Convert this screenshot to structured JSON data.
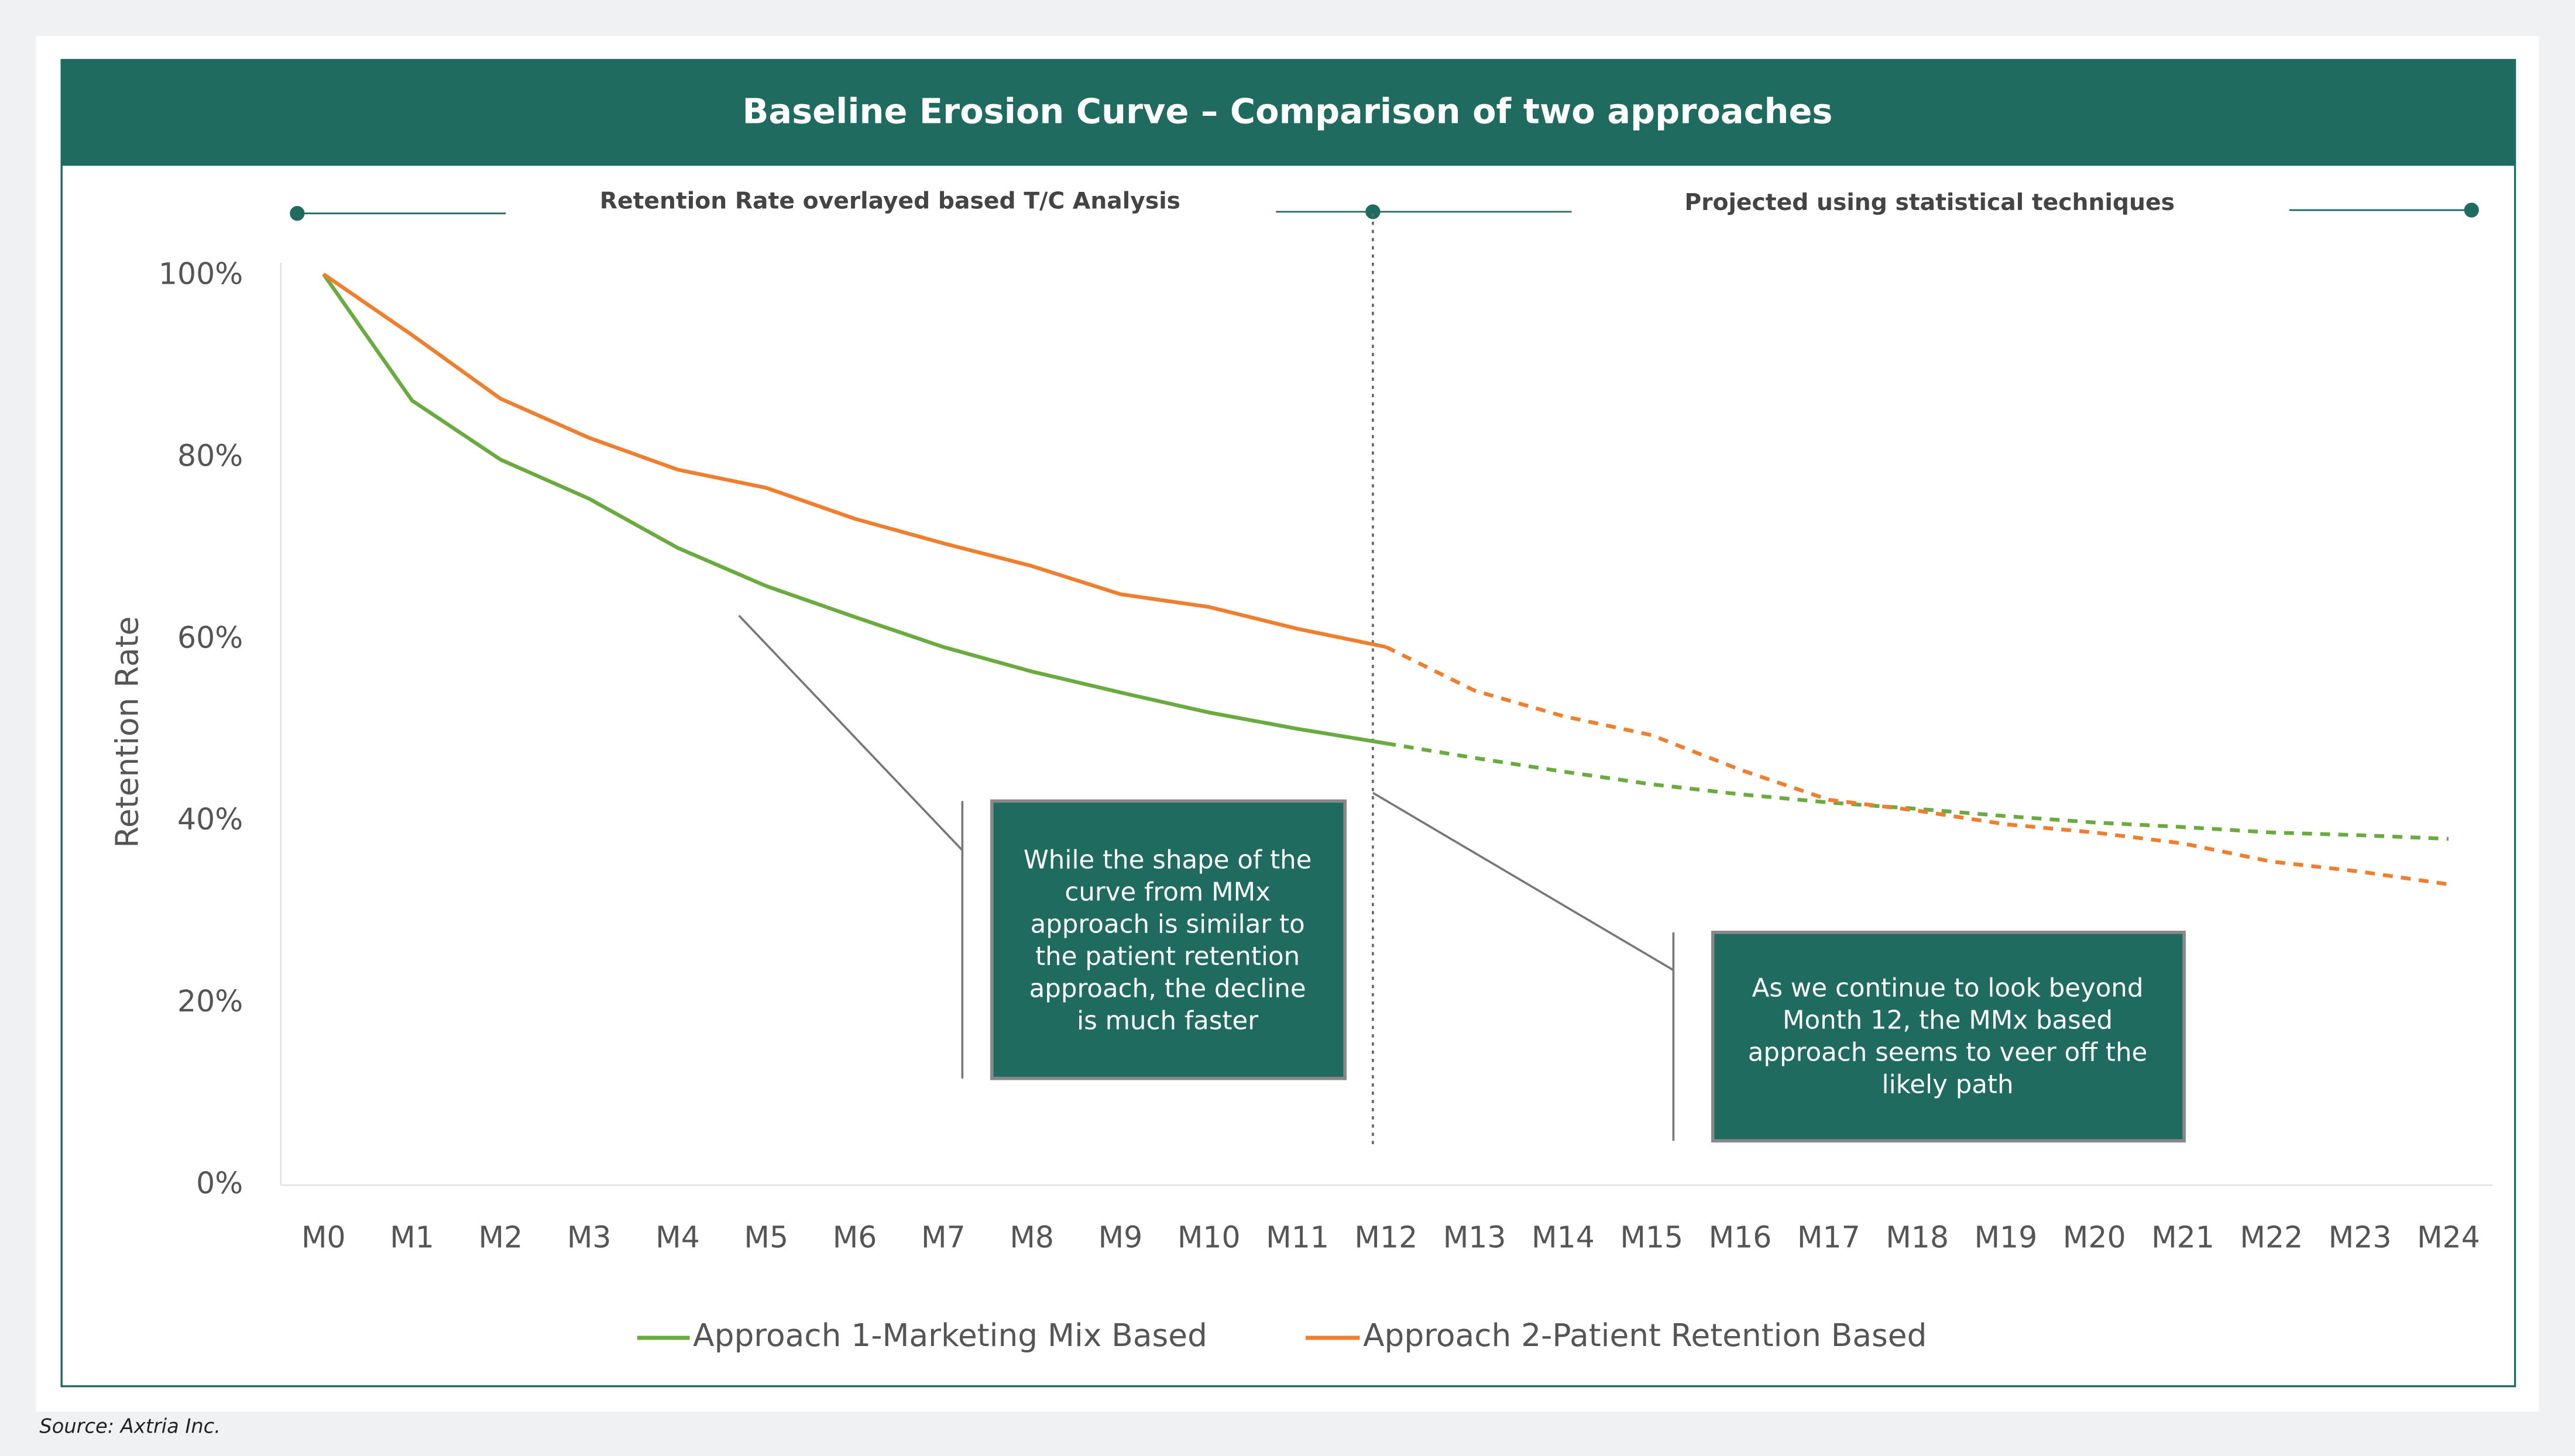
{
  "source": "Source: Axtria Inc.",
  "colors": {
    "header": "#1f6b5f",
    "approach1": "#6aab3f",
    "approach2": "#ef7f2e",
    "callout": "#1f6b5f"
  },
  "chart_data": {
    "type": "line",
    "title": "Baseline Erosion Curve – Comparison of two approaches",
    "ylabel": "Retention Rate",
    "xlabel": "",
    "ylim": [
      0,
      100
    ],
    "yticks": [
      "0%",
      "20%",
      "40%",
      "60%",
      "80%",
      "100%"
    ],
    "categories": [
      "M0",
      "M1",
      "M2",
      "M3",
      "M4",
      "M5",
      "M6",
      "M7",
      "M8",
      "M9",
      "M10",
      "M11",
      "M12",
      "M13",
      "M14",
      "M15",
      "M16",
      "M17",
      "M18",
      "M19",
      "M20",
      "M21",
      "M22",
      "M23",
      "M24"
    ],
    "projection_start": "M12",
    "section_labels": {
      "observed": "Retention Rate overlayed based T/C Analysis",
      "projected": "Projected using statistical techniques"
    },
    "series": [
      {
        "name": "Approach 1-Marketing Mix Based",
        "color": "#6aab3f",
        "values": [
          100,
          86.1,
          79.6,
          75.3,
          69.9,
          65.7,
          62.3,
          59.0,
          56.3,
          54.0,
          51.8,
          50.0,
          48.4,
          46.8,
          45.3,
          43.9,
          42.8,
          41.9,
          41.2,
          40.4,
          39.7,
          39.2,
          38.6,
          38.3,
          37.9
        ]
      },
      {
        "name": "Approach 2-Patient Retention Based",
        "color": "#ef7f2e",
        "values": [
          100,
          93.3,
          86.3,
          82.0,
          78.5,
          76.5,
          73.1,
          70.4,
          67.9,
          64.8,
          63.4,
          61.0,
          59.0,
          54.2,
          51.4,
          49.3,
          45.5,
          42.2,
          41.0,
          39.5,
          38.6,
          37.4,
          35.4,
          34.3,
          32.9
        ]
      }
    ],
    "annotations": [
      {
        "lines": [
          "While the shape of the",
          "curve from MMx",
          "approach is similar to",
          "the patient retention",
          "approach, the decline",
          "is much faster"
        ]
      },
      {
        "lines": [
          "As we continue to look beyond",
          "Month 12, the MMx based",
          "approach seems to veer off the",
          "likely path"
        ]
      }
    ],
    "grid": false,
    "legend": "bottom"
  }
}
